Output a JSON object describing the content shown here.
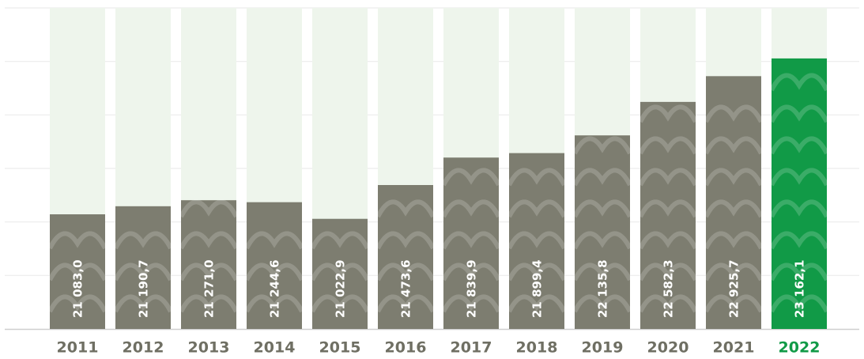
{
  "chart_data": {
    "type": "bar",
    "categories": [
      "2011",
      "2012",
      "2013",
      "2014",
      "2015",
      "2016",
      "2017",
      "2018",
      "2019",
      "2020",
      "2021",
      "2022"
    ],
    "values": [
      21083.0,
      21190.7,
      21271.0,
      21244.6,
      21022.9,
      21473.6,
      21839.9,
      21899.4,
      22135.8,
      22582.3,
      22925.7,
      23162.1
    ],
    "value_labels": [
      "21 083,0",
      "21 190,7",
      "21 271,0",
      "21 244,6",
      "21 022,9",
      "21 473,6",
      "21 839,9",
      "21 899,4",
      "22 135,8",
      "22 582,3",
      "22 925,7",
      "23 162,1"
    ],
    "colors": [
      "#7d7d70",
      "#7d7d70",
      "#7d7d70",
      "#7d7d70",
      "#7d7d70",
      "#7d7d70",
      "#7d7d70",
      "#7d7d70",
      "#7d7d70",
      "#7d7d70",
      "#7d7d70",
      "#119a47"
    ],
    "label_colors": [
      "#6f6f63",
      "#6f6f63",
      "#6f6f63",
      "#6f6f63",
      "#6f6f63",
      "#6f6f63",
      "#6f6f63",
      "#6f6f63",
      "#6f6f63",
      "#6f6f63",
      "#6f6f63",
      "#119a47"
    ],
    "ylim": [
      19554,
      23836
    ],
    "grid": true
  }
}
